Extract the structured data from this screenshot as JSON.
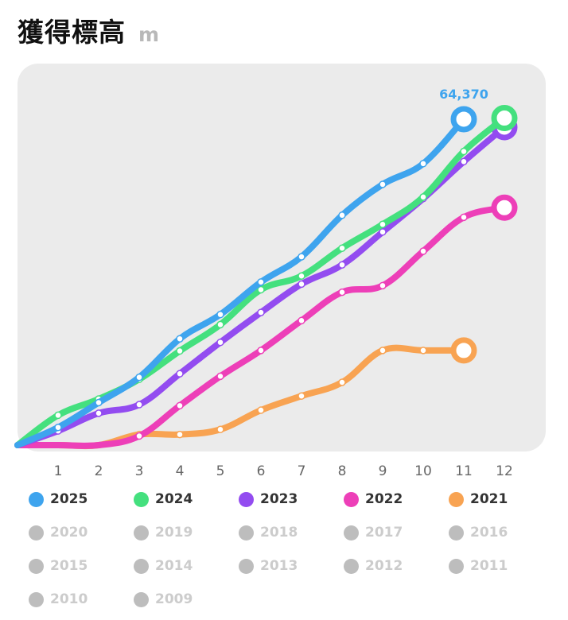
{
  "header": {
    "title": "獲得標高",
    "unit": "m"
  },
  "chart_data": {
    "type": "line",
    "title": "獲得標高",
    "ylabel": "m",
    "x_ticks": [
      "1",
      "2",
      "3",
      "4",
      "5",
      "6",
      "7",
      "8",
      "9",
      "10",
      "11",
      "12"
    ],
    "x_domain": [
      0,
      12
    ],
    "ylim": [
      0,
      73000
    ],
    "grid": false,
    "legend_position": "bottom",
    "series": [
      {
        "name": "2021",
        "color": "#f8a352",
        "values": [
          0,
          0,
          0,
          2100,
          2100,
          3100,
          6900,
          9700,
          12400,
          18700,
          18700,
          18700
        ]
      },
      {
        "name": "2022",
        "color": "#ed3fb8",
        "values": [
          0,
          0,
          0,
          1800,
          7800,
          13600,
          18700,
          24600,
          30200,
          31500,
          38300,
          45000,
          46900
        ]
      },
      {
        "name": "2023",
        "color": "#934cf0",
        "values": [
          0,
          2800,
          6300,
          8000,
          14100,
          20300,
          26200,
          31800,
          35600,
          42100,
          48700,
          56000,
          62800
        ]
      },
      {
        "name": "2024",
        "color": "#44e07e",
        "values": [
          0,
          5900,
          9100,
          13000,
          18600,
          23800,
          30700,
          33400,
          38900,
          43600,
          49000,
          58000,
          64600
        ]
      },
      {
        "name": "2025",
        "color": "#3ea4ee",
        "values": [
          0,
          3500,
          8400,
          13400,
          21000,
          25800,
          32200,
          37200,
          45400,
          51500,
          55600,
          64370
        ]
      }
    ],
    "annotations": [
      {
        "series": "2025",
        "label": "64,370"
      }
    ]
  },
  "legend": [
    {
      "label": "2025",
      "color": "#3ea4ee",
      "active": true
    },
    {
      "label": "2024",
      "color": "#44e07e",
      "active": true
    },
    {
      "label": "2023",
      "color": "#934cf0",
      "active": true
    },
    {
      "label": "2022",
      "color": "#ed3fb8",
      "active": true
    },
    {
      "label": "2021",
      "color": "#f8a352",
      "active": true
    },
    {
      "label": "2020",
      "color": "#bdbdbd",
      "active": false
    },
    {
      "label": "2019",
      "color": "#bdbdbd",
      "active": false
    },
    {
      "label": "2018",
      "color": "#bdbdbd",
      "active": false
    },
    {
      "label": "2017",
      "color": "#bdbdbd",
      "active": false
    },
    {
      "label": "2016",
      "color": "#bdbdbd",
      "active": false
    },
    {
      "label": "2015",
      "color": "#bdbdbd",
      "active": false
    },
    {
      "label": "2014",
      "color": "#bdbdbd",
      "active": false
    },
    {
      "label": "2013",
      "color": "#bdbdbd",
      "active": false
    },
    {
      "label": "2012",
      "color": "#bdbdbd",
      "active": false
    },
    {
      "label": "2011",
      "color": "#bdbdbd",
      "active": false
    },
    {
      "label": "2010",
      "color": "#bdbdbd",
      "active": false
    },
    {
      "label": "2009",
      "color": "#bdbdbd",
      "active": false
    }
  ]
}
